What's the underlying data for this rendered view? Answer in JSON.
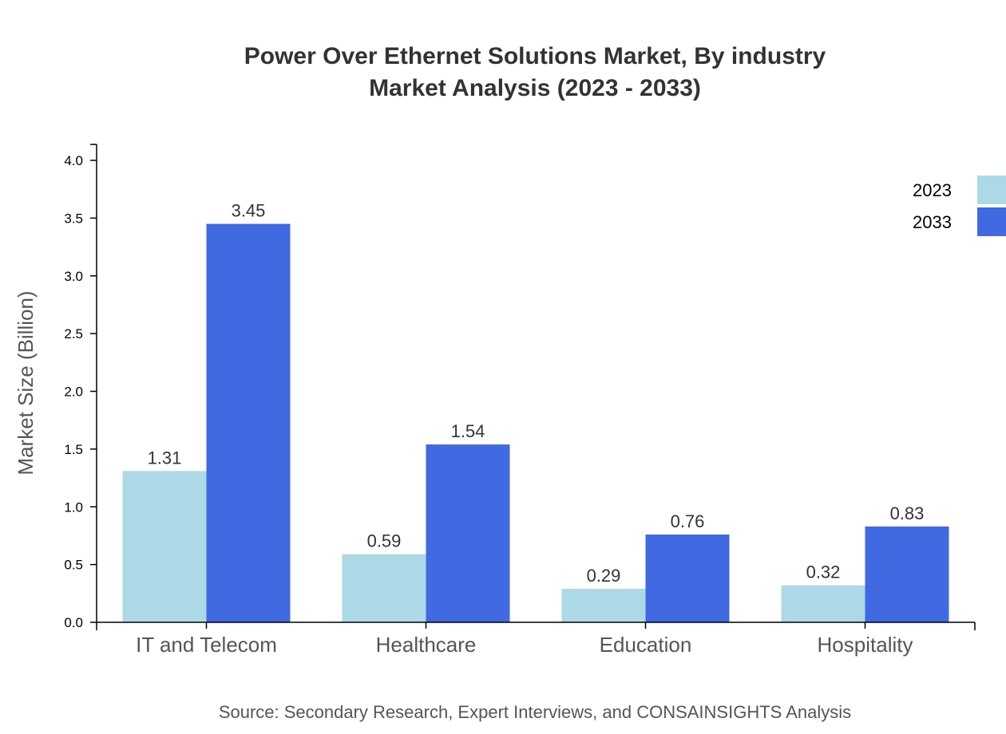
{
  "chart_data": {
    "type": "bar",
    "title": "Power Over Ethernet Solutions Market, By industry",
    "subtitle": "Market Analysis (2023 - 2033)",
    "xlabel": "",
    "ylabel": "Market Size (Billion)",
    "ylim": [
      0,
      4.14
    ],
    "yticks": [
      "0.0",
      "0.5",
      "1.0",
      "1.5",
      "2.0",
      "2.5",
      "3.0",
      "3.5",
      "4.0"
    ],
    "categories": [
      "IT and Telecom",
      "Healthcare",
      "Education",
      "Hospitality"
    ],
    "series": [
      {
        "name": "2023",
        "color": "#add8e6",
        "values": [
          1.31,
          0.59,
          0.29,
          0.32
        ],
        "labels": [
          "1.31",
          "0.59",
          "0.29",
          "0.32"
        ]
      },
      {
        "name": "2033",
        "color": "#4169e1",
        "values": [
          3.45,
          1.54,
          0.76,
          0.83
        ],
        "labels": [
          "3.45",
          "1.54",
          "0.76",
          "0.83"
        ]
      }
    ],
    "grid": false,
    "legend": "top-right",
    "source": "Source: Secondary Research, Expert Interviews, and CONSAINSIGHTS Analysis"
  }
}
